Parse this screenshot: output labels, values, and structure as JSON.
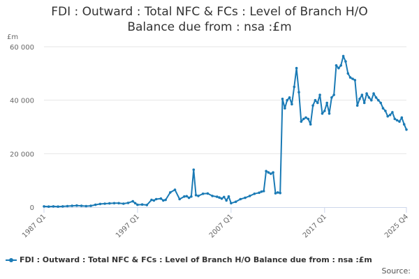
{
  "title_line1": "FDI : Outward : Total NFC & FCs : Level of Branch H/O",
  "title_line2": "Balance due from : nsa :£m",
  "unit_label": "£m",
  "legend_label": "FDI : Outward : Total NFC & FCs : Level of Branch H/O Balance due from : nsa :£m",
  "source_label": "Source:",
  "colors": {
    "series": "#1a7ab5",
    "grid": "#e6e6e6",
    "axis": "#ccd6eb"
  },
  "chart_data": {
    "type": "line",
    "title": "FDI : Outward : Total NFC & FCs : Level of Branch H/O Balance due from : nsa :£m",
    "ylabel": "£m",
    "ylim": [
      0,
      60000
    ],
    "yticks": [
      0,
      20000,
      40000,
      60000
    ],
    "ytick_labels": [
      "0",
      "20 000",
      "40 000",
      "60 000"
    ],
    "xlim": [
      1987.0,
      2025.75
    ],
    "xticks": [
      1987.0,
      1997.0,
      2007.0,
      2017.0,
      2025.75
    ],
    "xtick_labels": [
      "1987 Q1",
      "1997 Q1",
      "2007 Q1",
      "2017 Q1",
      "2025 Q4"
    ],
    "grid": true,
    "legend": "bottom",
    "series": [
      {
        "name": "FDI : Outward : Total NFC & FCs : Level of Branch H/O Balance due from : nsa :£m",
        "x": [
          1987.0,
          1987.5,
          1988.0,
          1988.5,
          1989.0,
          1989.5,
          1990.0,
          1990.5,
          1991.0,
          1991.5,
          1992.0,
          1992.5,
          1993.0,
          1993.5,
          1994.0,
          1994.5,
          1995.0,
          1995.5,
          1996.0,
          1996.5,
          1996.75,
          1997.0,
          1997.5,
          1998.0,
          1998.5,
          1998.75,
          1999.0,
          1999.5,
          1999.75,
          2000.0,
          2000.5,
          2001.0,
          2001.5,
          2002.0,
          2002.25,
          2002.5,
          2002.75,
          2003.0,
          2003.25,
          2003.5,
          2004.0,
          2004.5,
          2005.0,
          2005.5,
          2005.75,
          2006.0,
          2006.25,
          2006.5,
          2006.75,
          2007.0,
          2007.5,
          2008.0,
          2008.5,
          2009.0,
          2009.5,
          2010.0,
          2010.25,
          2010.5,
          2010.75,
          2011.0,
          2011.25,
          2011.5,
          2011.75,
          2012.0,
          2012.25,
          2012.5,
          2012.75,
          2013.0,
          2013.25,
          2013.5,
          2013.75,
          2014.0,
          2014.25,
          2014.5,
          2014.75,
          2015.0,
          2015.25,
          2015.5,
          2015.75,
          2016.0,
          2016.25,
          2016.5,
          2016.75,
          2017.0,
          2017.25,
          2017.5,
          2017.75,
          2018.0,
          2018.25,
          2018.5,
          2018.75,
          2019.0,
          2019.25,
          2019.5,
          2019.75,
          2020.0,
          2020.25,
          2020.5,
          2020.75,
          2021.0,
          2021.25,
          2021.5,
          2021.75,
          2022.0,
          2022.25,
          2022.5,
          2022.75,
          2023.0,
          2023.25,
          2023.5,
          2023.75,
          2024.0,
          2024.25,
          2024.5,
          2024.75,
          2025.0,
          2025.25,
          2025.5,
          2025.75
        ],
        "values": [
          300,
          200,
          300,
          200,
          300,
          400,
          500,
          600,
          500,
          400,
          500,
          900,
          1200,
          1300,
          1400,
          1500,
          1500,
          1300,
          1600,
          2200,
          1500,
          900,
          1000,
          800,
          2700,
          2500,
          3000,
          3200,
          2500,
          2700,
          5500,
          6500,
          3000,
          4000,
          4100,
          3500,
          4000,
          14000,
          4500,
          4200,
          5000,
          5100,
          4200,
          3900,
          3600,
          3200,
          3800,
          2500,
          4000,
          1500,
          2000,
          3000,
          3500,
          4200,
          5000,
          5400,
          5800,
          6000,
          13500,
          13000,
          12500,
          13000,
          5200,
          5500,
          5300,
          40500,
          37000,
          40000,
          41000,
          38500,
          45000,
          52000,
          43000,
          32000,
          33000,
          33500,
          33000,
          31000,
          38000,
          40000,
          39000,
          42000,
          35000,
          36000,
          39000,
          35000,
          41000,
          42000,
          53000,
          52000,
          53000,
          56500,
          54500,
          50000,
          48500,
          48000,
          47500,
          38000,
          40500,
          42000,
          39000,
          42500,
          41000,
          40000,
          42500,
          41000,
          40000,
          39000,
          37000,
          36000,
          34000,
          34500,
          35500,
          33000,
          32500,
          32000,
          33500,
          31000,
          29000
        ]
      }
    ]
  }
}
